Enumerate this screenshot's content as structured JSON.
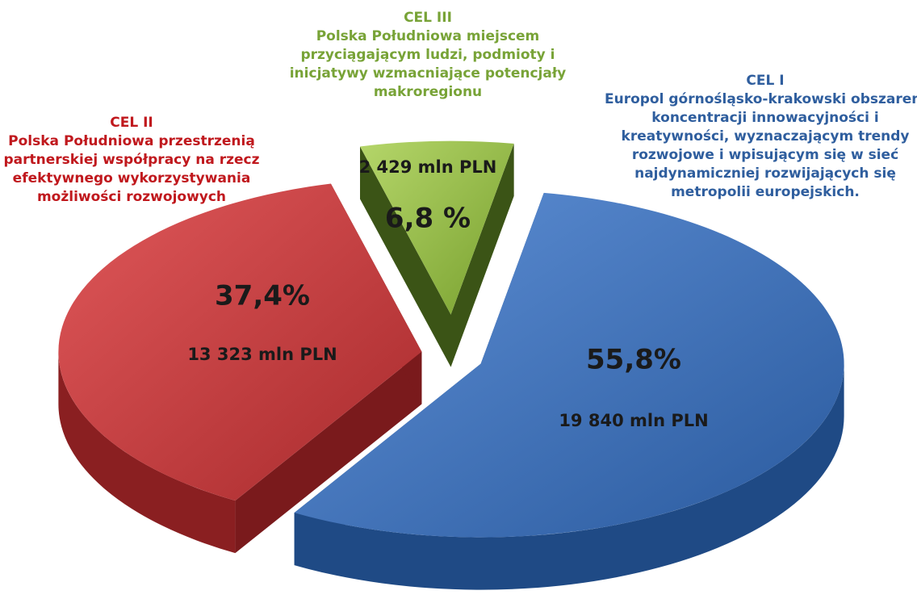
{
  "chart_data": {
    "type": "pie",
    "categories": [
      "CEL I",
      "CEL II",
      "CEL III"
    ],
    "descriptions": [
      [
        "Europol górnośląsko-krakowski obszarem",
        "koncentracji innowacyjności i",
        "kreatywności, wyznaczającym trendy",
        "rozwojowe i wpisującym się w sieć",
        "najdynamiczniej rozwijających się",
        "metropolii europejskich."
      ],
      [
        "Polska Południowa przestrzenią",
        "partnerskiej współpracy na rzecz",
        "efektywnego wykorzystywania",
        "możliwości rozwojowych"
      ],
      [
        "Polska Południowa miejscem",
        "przyciągającym ludzi, podmioty i",
        "inicjatywy wzmacniające potencjały",
        "makroregionu"
      ]
    ],
    "values": [
      55.8,
      37.4,
      6.8
    ],
    "value_labels": [
      "55,8%",
      "37,4%",
      "6,8 %"
    ],
    "amount_labels": [
      "19 840 mln PLN",
      "13 323 mln PLN",
      "2 429 mln PLN"
    ],
    "colors": [
      "#3a6db5",
      "#c73a3b",
      "#8db53d"
    ]
  }
}
